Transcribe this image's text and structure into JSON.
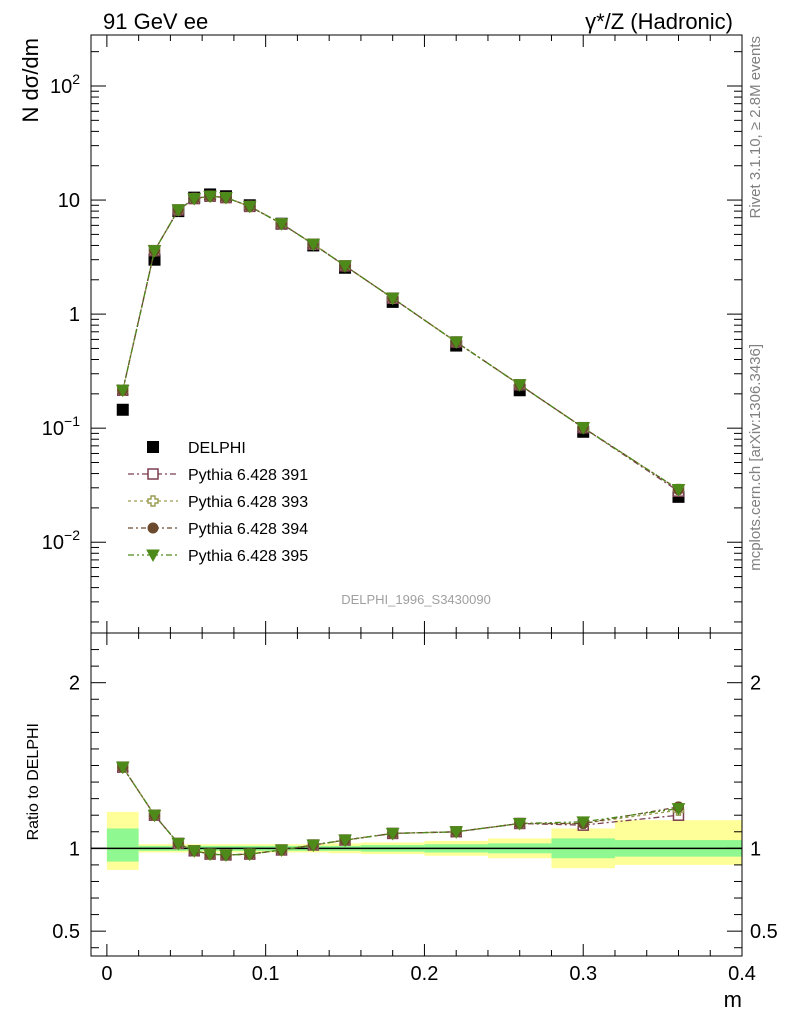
{
  "header": {
    "left": "91 GeV ee",
    "right": "γ*/Z (Hadronic)"
  },
  "side_text": {
    "rivet": "Rivet 3.1.10, ≥ 2.8M events",
    "mcplots": "mcplots.cern.ch [arXiv:1306.3436]"
  },
  "analysis_label": "DELPHI_1996_S3430090",
  "colors": {
    "data": "#000000",
    "p391": "#7b3f50",
    "p393": "#9a9a50",
    "p394": "#6b4a2e",
    "p395": "#4d8a1a",
    "band_inner": "#90f890",
    "band_outer": "#ffff99"
  },
  "chart_data": [
    {
      "type": "scatter",
      "panel": "main",
      "ylabel": "N dσ/dm",
      "yscale": "log",
      "xlim": [
        -0.01,
        0.4
      ],
      "ylim": [
        0.0016,
        280
      ],
      "y_ticks": [
        {
          "v": 0.01,
          "base": "10",
          "exp": "−2"
        },
        {
          "v": 0.1,
          "base": "10",
          "exp": "−1"
        },
        {
          "v": 1,
          "base": "1",
          "exp": ""
        },
        {
          "v": 10,
          "base": "10",
          "exp": ""
        },
        {
          "v": 100,
          "base": "10",
          "exp": "2"
        }
      ],
      "legend_position": "lower-left",
      "x": [
        0.01,
        0.03,
        0.045,
        0.055,
        0.065,
        0.075,
        0.09,
        0.11,
        0.13,
        0.15,
        0.18,
        0.22,
        0.26,
        0.3,
        0.36
      ],
      "data": {
        "name": "DELPHI",
        "values": [
          0.145,
          3.0,
          8.0,
          10.5,
          11.2,
          10.8,
          9.0,
          6.2,
          4.0,
          2.55,
          1.28,
          0.53,
          0.215,
          0.093,
          0.025
        ]
      },
      "series": [
        {
          "name": "Pythia 6.428 391",
          "values": [
            0.215,
            3.6,
            8.2,
            10.3,
            10.8,
            10.5,
            8.8,
            6.2,
            4.1,
            2.65,
            1.38,
            0.57,
            0.24,
            0.101,
            0.028
          ]
        },
        {
          "name": "Pythia 6.428 393",
          "values": [
            0.215,
            3.6,
            8.2,
            10.3,
            10.8,
            10.5,
            8.8,
            6.2,
            4.1,
            2.65,
            1.38,
            0.57,
            0.24,
            0.101,
            0.029
          ]
        },
        {
          "name": "Pythia 6.428 394",
          "values": [
            0.215,
            3.6,
            8.2,
            10.3,
            10.8,
            10.5,
            8.8,
            6.2,
            4.1,
            2.65,
            1.38,
            0.57,
            0.24,
            0.101,
            0.029
          ]
        },
        {
          "name": "Pythia 6.428 395",
          "values": [
            0.215,
            3.6,
            8.2,
            10.3,
            10.8,
            10.5,
            8.8,
            6.2,
            4.1,
            2.65,
            1.38,
            0.57,
            0.24,
            0.101,
            0.029
          ]
        }
      ]
    },
    {
      "type": "scatter",
      "panel": "ratio",
      "ylabel": "Ratio to DELPHI",
      "xlabel": "m",
      "xlim": [
        -0.01,
        0.4
      ],
      "ylim": [
        0.35,
        2.3
      ],
      "x_ticks": [
        {
          "v": 0,
          "label": "0"
        },
        {
          "v": 0.1,
          "label": "0.1"
        },
        {
          "v": 0.2,
          "label": "0.2"
        },
        {
          "v": 0.3,
          "label": "0.3"
        },
        {
          "v": 0.4,
          "label": "0.4"
        }
      ],
      "y_ticks": [
        {
          "v": 0.5,
          "label": "0.5"
        },
        {
          "v": 1,
          "label": "1"
        },
        {
          "v": 2,
          "label": "2"
        }
      ],
      "bins": [
        {
          "x0": 0.0,
          "x1": 0.02,
          "inner": [
            0.92,
            1.12
          ],
          "outer": [
            0.87,
            1.22
          ]
        },
        {
          "x0": 0.02,
          "x1": 0.04,
          "inner": [
            0.985,
            1.015
          ],
          "outer": [
            0.975,
            1.025
          ]
        },
        {
          "x0": 0.04,
          "x1": 0.05,
          "inner": [
            0.985,
            1.015
          ],
          "outer": [
            0.975,
            1.025
          ]
        },
        {
          "x0": 0.05,
          "x1": 0.06,
          "inner": [
            0.985,
            1.015
          ],
          "outer": [
            0.975,
            1.025
          ]
        },
        {
          "x0": 0.06,
          "x1": 0.07,
          "inner": [
            0.985,
            1.015
          ],
          "outer": [
            0.975,
            1.025
          ]
        },
        {
          "x0": 0.07,
          "x1": 0.08,
          "inner": [
            0.985,
            1.015
          ],
          "outer": [
            0.975,
            1.025
          ]
        },
        {
          "x0": 0.08,
          "x1": 0.1,
          "inner": [
            0.985,
            1.015
          ],
          "outer": [
            0.975,
            1.025
          ]
        },
        {
          "x0": 0.1,
          "x1": 0.12,
          "inner": [
            0.985,
            1.015
          ],
          "outer": [
            0.975,
            1.025
          ]
        },
        {
          "x0": 0.12,
          "x1": 0.14,
          "inner": [
            0.985,
            1.015
          ],
          "outer": [
            0.975,
            1.025
          ]
        },
        {
          "x0": 0.14,
          "x1": 0.16,
          "inner": [
            0.985,
            1.015
          ],
          "outer": [
            0.97,
            1.03
          ]
        },
        {
          "x0": 0.16,
          "x1": 0.2,
          "inner": [
            0.98,
            1.02
          ],
          "outer": [
            0.965,
            1.035
          ]
        },
        {
          "x0": 0.2,
          "x1": 0.24,
          "inner": [
            0.975,
            1.025
          ],
          "outer": [
            0.955,
            1.045
          ]
        },
        {
          "x0": 0.24,
          "x1": 0.28,
          "inner": [
            0.97,
            1.03
          ],
          "outer": [
            0.94,
            1.06
          ]
        },
        {
          "x0": 0.28,
          "x1": 0.32,
          "inner": [
            0.94,
            1.06
          ],
          "outer": [
            0.88,
            1.12
          ]
        },
        {
          "x0": 0.32,
          "x1": 0.4,
          "inner": [
            0.95,
            1.05
          ],
          "outer": [
            0.9,
            1.17
          ]
        }
      ],
      "x": [
        0.01,
        0.03,
        0.045,
        0.055,
        0.065,
        0.075,
        0.09,
        0.11,
        0.13,
        0.15,
        0.18,
        0.22,
        0.26,
        0.3,
        0.36
      ],
      "series": [
        {
          "name": "Pythia 6.428 391",
          "values": [
            1.49,
            1.2,
            1.03,
            0.985,
            0.965,
            0.96,
            0.965,
            0.99,
            1.02,
            1.05,
            1.09,
            1.1,
            1.15,
            1.14,
            1.2
          ]
        },
        {
          "name": "Pythia 6.428 393",
          "values": [
            1.49,
            1.2,
            1.03,
            0.985,
            0.965,
            0.96,
            0.965,
            0.99,
            1.02,
            1.05,
            1.09,
            1.1,
            1.15,
            1.15,
            1.23
          ]
        },
        {
          "name": "Pythia 6.428 394",
          "values": [
            1.49,
            1.2,
            1.03,
            0.985,
            0.965,
            0.96,
            0.965,
            0.99,
            1.02,
            1.05,
            1.09,
            1.1,
            1.15,
            1.15,
            1.25
          ]
        },
        {
          "name": "Pythia 6.428 395",
          "values": [
            1.49,
            1.2,
            1.03,
            0.985,
            0.965,
            0.96,
            0.965,
            0.99,
            1.02,
            1.05,
            1.09,
            1.1,
            1.15,
            1.16,
            1.24
          ]
        }
      ]
    }
  ]
}
